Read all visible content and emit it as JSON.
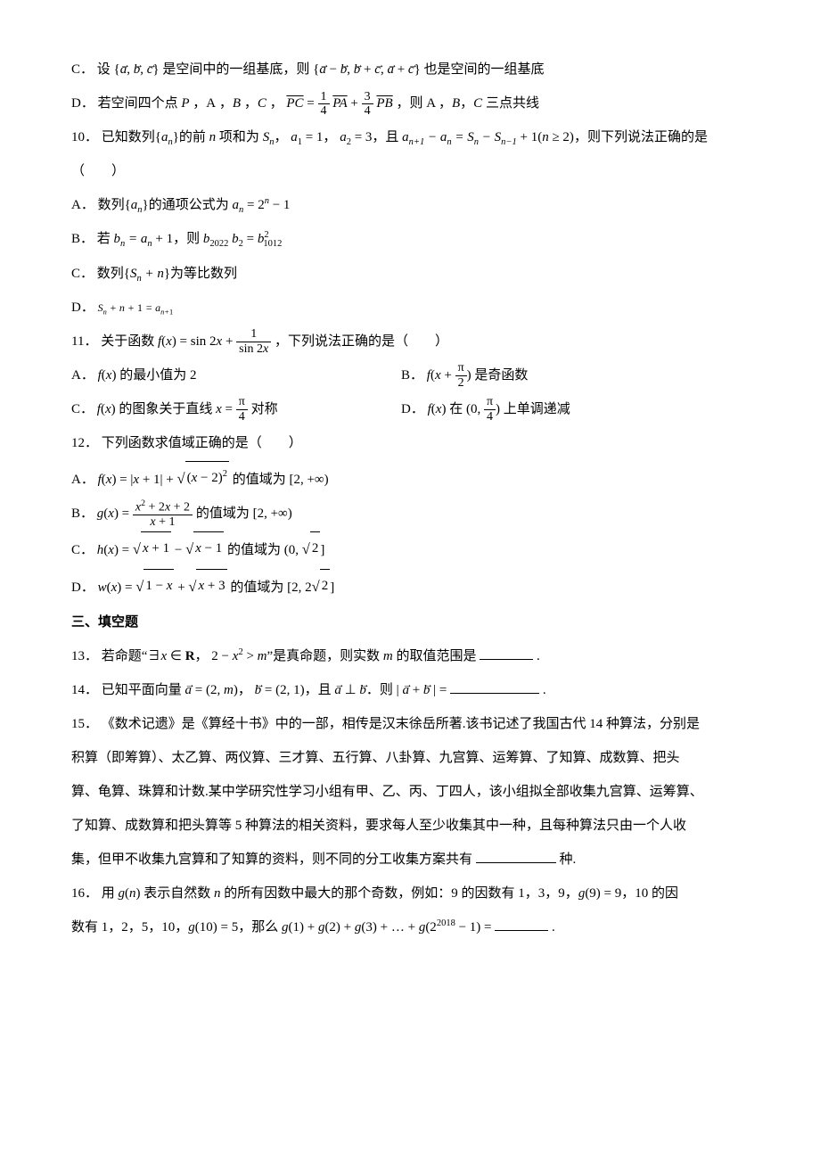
{
  "font": {
    "family": "SimSun",
    "math_family": "Times New Roman",
    "size_pt": 11,
    "line_height": 2.4
  },
  "colors": {
    "text": "#000000",
    "background": "#ffffff",
    "blank_border": "#000000"
  },
  "items": [
    {
      "label": "C．",
      "text_pre": "设",
      "set1": "{a,b,c}",
      "text_mid": "是空间中的一组基底，则",
      "set2": "{a−b, b+c, a+c}",
      "text_post": "也是空间的一组基底"
    },
    {
      "label": "D．",
      "text_pre": "若空间四个点 P ，A ，B ，C ，",
      "eq": "PC = (1/4)PA + (3/4)PB",
      "frac1_num": "1",
      "frac1_den": "4",
      "frac2_num": "3",
      "frac2_den": "4",
      "text_post": "，则 A ，B ，C 三点共线"
    },
    {
      "num": "10．",
      "text": "已知数列{aₙ}的前 n 项和为 Sₙ ， a₁ = 1 ， a₂ = 3 ，且 aₙ₊₁ − aₙ = Sₙ − Sₙ₋₁ + 1 (n ≥ 2)，则下列说法正确的是（　　）",
      "options": [
        {
          "label": "A．",
          "text": "数列{aₙ}的通项公式为 aₙ = 2ⁿ − 1"
        },
        {
          "label": "B．",
          "text": "若 bₙ = aₙ + 1 ，则 b₂₀₂₂ b₂ = b²₁₀₁₂"
        },
        {
          "label": "C．",
          "text": "数列{Sₙ + n}为等比数列"
        },
        {
          "label": "D．",
          "text": "Sₙ + n + 1 = aₙ₊₁"
        }
      ]
    },
    {
      "num": "11．",
      "text": "关于函数 f(x) = sin 2x + 1/(sin 2x) ，下列说法正确的是（　　）",
      "frac_num": "1",
      "frac_den": "sin 2x",
      "options": [
        {
          "label": "A．",
          "text": "f(x) 的最小值为 2"
        },
        {
          "label": "B．",
          "text": "f(x + π/2) 是奇函数",
          "frac_num": "π",
          "frac_den": "2"
        },
        {
          "label": "C．",
          "text": "f(x) 的图象关于直线 x = π/4 对称",
          "frac_num": "π",
          "frac_den": "4"
        },
        {
          "label": "D．",
          "text": "f(x) 在 (0, π/4) 上单调递减",
          "frac_num": "π",
          "frac_den": "4"
        }
      ]
    },
    {
      "num": "12．",
      "text": "下列函数求值域正确的是（　　）",
      "options": [
        {
          "label": "A．",
          "text": "f(x) = |x+1| + √((x−2)²) 的值域为 [2, +∞)"
        },
        {
          "label": "B．",
          "text": "g(x) = (x²+2x+2)/(x+1) 的值域为 [2, +∞)",
          "frac_num": "x² + 2x + 2",
          "frac_den": "x + 1"
        },
        {
          "label": "C．",
          "text": "h(x) = √(x+1) − √(x−1) 的值域为 (0, √2]"
        },
        {
          "label": "D．",
          "text": "w(x) = √(1−x) + √(x+3) 的值域为 [2, 2√2]"
        }
      ]
    }
  ],
  "section3": {
    "head": "三、填空题"
  },
  "q13": {
    "num": "13．",
    "pre": "若命题“∃x ∈ R ， 2 − x² > m”是真命题，则实数 m 的取值范围是",
    "post": "."
  },
  "q14": {
    "num": "14．",
    "pre": "已知平面向量 a = (2, m)， b = (2, 1)，且 a ⊥ b．则 | a + b | =",
    "post": "."
  },
  "q15": {
    "num": "15．",
    "line1": "《数术记遗》是《算经十书》中的一部，相传是汉末徐岳所著.该书记述了我国古代 14 种算法，分别是",
    "line2": "积算（即筹算）、太乙算、两仪算、三才算、五行算、八卦算、九宫算、运筹算、了知算、成数算、把头",
    "line3": "算、龟算、珠算和计数.某中学研究性学习小组有甲、乙、丙、丁四人，该小组拟全部收集九宫算、运筹算、",
    "line4": "了知算、成数算和把头算等 5 种算法的相关资料，要求每人至少收集其中一种，且每种算法只由一个人收",
    "line5pre": "集，但甲不收集九宫算和了知算的资料，则不同的分工收集方案共有",
    "line5post": "种."
  },
  "q16": {
    "num": "16．",
    "line1": "用 g(n) 表示自然数 n 的所有因数中最大的那个奇数，例如：9 的因数有 1，3，9，g(9) = 9，10 的因",
    "line2pre": "数有 1，2，5，10，g(10) = 5，那么 g(1) + g(2) + g(3) + … + g(2²⁰¹⁸ − 1) =",
    "line2post": "."
  }
}
